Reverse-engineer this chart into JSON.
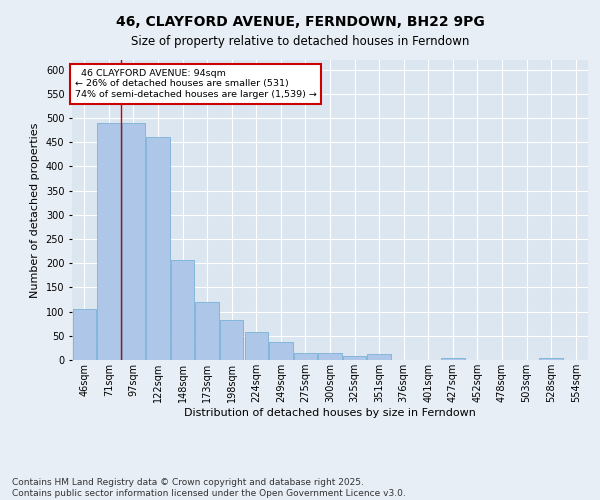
{
  "title": "46, CLAYFORD AVENUE, FERNDOWN, BH22 9PG",
  "subtitle": "Size of property relative to detached houses in Ferndown",
  "xlabel": "Distribution of detached houses by size in Ferndown",
  "ylabel": "Number of detached properties",
  "footer": "Contains HM Land Registry data © Crown copyright and database right 2025.\nContains public sector information licensed under the Open Government Licence v3.0.",
  "categories": [
    "46sqm",
    "71sqm",
    "97sqm",
    "122sqm",
    "148sqm",
    "173sqm",
    "198sqm",
    "224sqm",
    "249sqm",
    "275sqm",
    "300sqm",
    "325sqm",
    "351sqm",
    "376sqm",
    "401sqm",
    "427sqm",
    "452sqm",
    "478sqm",
    "503sqm",
    "528sqm",
    "554sqm"
  ],
  "values": [
    105,
    490,
    490,
    460,
    207,
    120,
    83,
    58,
    38,
    15,
    15,
    8,
    12,
    0,
    0,
    5,
    0,
    0,
    0,
    5,
    0
  ],
  "bar_color": "#aec6e8",
  "bar_edge_color": "#6aaad4",
  "bg_color": "#dce6f0",
  "grid_color": "#ffffff",
  "annotation_text": "  46 CLAYFORD AVENUE: 94sqm\n← 26% of detached houses are smaller (531)\n74% of semi-detached houses are larger (1,539) →",
  "annotation_box_color": "#ffffff",
  "annotation_box_edge": "#cc0000",
  "vline_color": "#cc0000",
  "vline_pos": 1.5,
  "ylim": [
    0,
    620
  ],
  "yticks": [
    0,
    50,
    100,
    150,
    200,
    250,
    300,
    350,
    400,
    450,
    500,
    550,
    600
  ],
  "title_fontsize": 10,
  "subtitle_fontsize": 8.5,
  "xlabel_fontsize": 8,
  "ylabel_fontsize": 8,
  "tick_fontsize": 7,
  "footer_fontsize": 6.5,
  "fig_bg": "#e8eef5"
}
